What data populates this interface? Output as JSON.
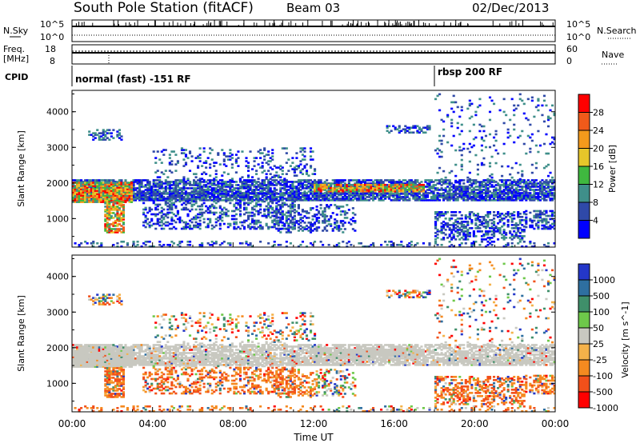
{
  "header": {
    "title": "South Pole Station (fitACF)",
    "beam": "Beam 03",
    "date": "02/Dec/2013"
  },
  "top_panel": {
    "nsky_label": "N.Sky",
    "nsky_ticks": [
      "10^5",
      "10^0"
    ],
    "nsearch_label": "N.Search",
    "nsearch_ticks": [
      "10^5",
      "10^0"
    ],
    "freq_label_line1": "Freq.",
    "freq_label_line2": "[MHz]",
    "freq_ticks": [
      "18",
      "8"
    ],
    "nave_label": "Nave",
    "nave_ticks": [
      "60",
      "0"
    ],
    "cpid_label": "CPID",
    "cpid_segments": [
      {
        "label": "normal (fast) -151 RF",
        "start_hour": 0
      },
      {
        "label": "rbsp 200 RF",
        "start_hour": 18
      }
    ]
  },
  "colors": {
    "power_scale": [
      "#0000ff",
      "#2f49a8",
      "#3f8f8a",
      "#3fb83f",
      "#e6c62a",
      "#f39a1c",
      "#f05a1a",
      "#ff0000"
    ],
    "velocity_scale": [
      "#2437c9",
      "#2e6fa0",
      "#3f8f6a",
      "#6ec84a",
      "#c8c8c0",
      "#f4b24a",
      "#f58a20",
      "#f2501a",
      "#ff0000"
    ],
    "ground_scatter": "#c8c8c0",
    "background": "#ffffff"
  },
  "chart_data": [
    {
      "type": "heatmap",
      "name": "Power panel",
      "xlabel": "",
      "ylabel": "Slant Range [km]",
      "xlim": [
        0,
        24
      ],
      "ylim": [
        200,
        4600
      ],
      "yticks": [
        "1000",
        "2000",
        "3000",
        "4000"
      ],
      "colorbar": {
        "label": "Power [dB]",
        "ticks": [
          "4",
          "8",
          "12",
          "16",
          "20",
          "24",
          "28"
        ],
        "range": [
          0,
          30
        ]
      }
    },
    {
      "type": "heatmap",
      "name": "Velocity panel",
      "xlabel": "Time UT",
      "ylabel": "Slant Range [km]",
      "xlim": [
        0,
        24
      ],
      "ylim": [
        200,
        4600
      ],
      "xticks": [
        "00:00",
        "04:00",
        "08:00",
        "12:00",
        "16:00",
        "20:00",
        "00:00"
      ],
      "yticks": [
        "1000",
        "2000",
        "3000",
        "4000"
      ],
      "colorbar": {
        "label": "Velocity [m s^-1]",
        "ticks": [
          "1000",
          "500",
          "100",
          "50",
          "25",
          "-25",
          "-100",
          "-500",
          "-1000"
        ]
      }
    }
  ]
}
